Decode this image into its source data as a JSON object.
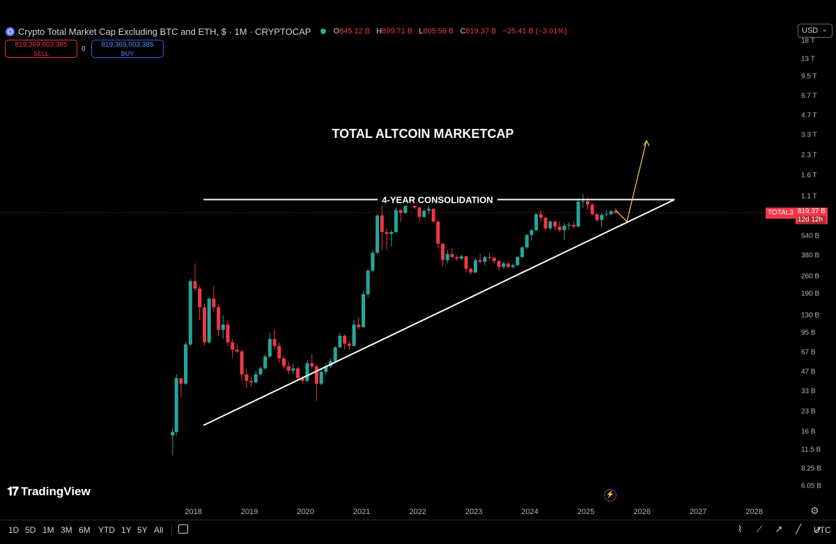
{
  "header": {
    "title": "Crypto Total Market Cap Excluding BTC and ETH, $ · 1M · CRYPTOCAP",
    "ohlc": {
      "o_key": "O",
      "o": "845.12 B",
      "h_key": "H",
      "h": "899.71 B",
      "l_key": "L",
      "l": "805.56 B",
      "c_key": "C",
      "c": "819.37 B",
      "change": "−25.41 B (−3.01%)"
    }
  },
  "trade": {
    "sell_price": "819,369,603,385",
    "sell_label": "SELL",
    "spread": "0",
    "buy_price": "819,369,603,385",
    "buy_label": "BUY"
  },
  "currency": "USD",
  "price_tag": {
    "symbol": "TOTAL3",
    "price": "819.37 B",
    "countdown": "12d 12h"
  },
  "branding": "TradingView",
  "toolbar": {
    "timeframes": [
      "1D",
      "5D",
      "1M",
      "3M",
      "6M",
      "YTD",
      "1Y",
      "5Y",
      "All"
    ],
    "timezone": "UTC"
  },
  "colors": {
    "up": "#26a69a",
    "down": "#f23645",
    "annotation": "#ffffff",
    "projection": "#f5c542",
    "background": "#000000"
  },
  "chart_data": {
    "type": "candlestick",
    "title": "TOTAL ALTCOIN MARKETCAP",
    "annotation": "4-YEAR CONSOLIDATION",
    "y_scale": "log",
    "y_unit": "USD",
    "y_ticks": [
      "18 T",
      "13 T",
      "9.5 T",
      "6.7 T",
      "4.7 T",
      "3.3 T",
      "2.3 T",
      "1.6 T",
      "1.1 T",
      "540 B",
      "380 B",
      "260 B",
      "190 B",
      "130 B",
      "95 B",
      "67 B",
      "47 B",
      "33 B",
      "23 B",
      "16 B",
      "11.5 B",
      "8.25 B",
      "6.05 B"
    ],
    "x_ticks": [
      "2018",
      "2019",
      "2020",
      "2021",
      "2022",
      "2023",
      "2024",
      "2025",
      "2026",
      "2027",
      "2028"
    ],
    "candles": [
      [
        2017.6,
        15.0,
        17.0,
        10.5,
        16.0
      ],
      [
        2017.667,
        16.0,
        45.0,
        15.0,
        42.0
      ],
      [
        2017.75,
        42.0,
        40.0,
        30.0,
        38.0
      ],
      [
        2017.833,
        38.0,
        80.0,
        37.0,
        77.0
      ],
      [
        2017.917,
        77.0,
        250.0,
        75.0,
        240.0
      ],
      [
        2018.0,
        240.0,
        330.0,
        200.0,
        210.0
      ],
      [
        2018.083,
        210.0,
        220.0,
        120.0,
        150.0
      ],
      [
        2018.167,
        150.0,
        160.0,
        75.0,
        80.0
      ],
      [
        2018.25,
        80.0,
        180.0,
        78.0,
        175.0
      ],
      [
        2018.333,
        175.0,
        220.0,
        140.0,
        150.0
      ],
      [
        2018.417,
        150.0,
        160.0,
        90.0,
        100.0
      ],
      [
        2018.5,
        100.0,
        130.0,
        85.0,
        110.0
      ],
      [
        2018.583,
        110.0,
        115.0,
        75.0,
        80.0
      ],
      [
        2018.667,
        80.0,
        85.0,
        60.0,
        70.0
      ],
      [
        2018.75,
        70.0,
        78.0,
        66.0,
        68.0
      ],
      [
        2018.833,
        68.0,
        70.0,
        40.0,
        45.0
      ],
      [
        2018.917,
        45.0,
        50.0,
        35.0,
        40.0
      ],
      [
        2019.0,
        40.0,
        43.0,
        36.0,
        39.0
      ],
      [
        2019.083,
        39.0,
        48.0,
        38.0,
        45.0
      ],
      [
        2019.167,
        45.0,
        52.0,
        44.0,
        50.0
      ],
      [
        2019.25,
        50.0,
        65.0,
        49.0,
        62.0
      ],
      [
        2019.333,
        62.0,
        95.0,
        60.0,
        85.0
      ],
      [
        2019.417,
        85.0,
        100.0,
        70.0,
        75.0
      ],
      [
        2019.5,
        75.0,
        80.0,
        55.0,
        60.0
      ],
      [
        2019.583,
        60.0,
        63.0,
        50.0,
        52.0
      ],
      [
        2019.667,
        52.0,
        56.0,
        45.0,
        48.0
      ],
      [
        2019.75,
        48.0,
        54.0,
        45.0,
        50.0
      ],
      [
        2019.833,
        50.0,
        52.0,
        40.0,
        42.0
      ],
      [
        2019.917,
        42.0,
        44.0,
        38.0,
        40.0
      ],
      [
        2020.0,
        40.0,
        58.0,
        39.0,
        55.0
      ],
      [
        2020.083,
        55.0,
        65.0,
        50.0,
        52.0
      ],
      [
        2020.167,
        52.0,
        54.0,
        28.0,
        38.0
      ],
      [
        2020.25,
        38.0,
        50.0,
        37.0,
        47.0
      ],
      [
        2020.333,
        47.0,
        55.0,
        45.0,
        52.0
      ],
      [
        2020.417,
        52.0,
        60.0,
        50.0,
        57.0
      ],
      [
        2020.5,
        57.0,
        75.0,
        55.0,
        73.0
      ],
      [
        2020.583,
        73.0,
        95.0,
        72.0,
        90.0
      ],
      [
        2020.667,
        90.0,
        92.0,
        70.0,
        78.0
      ],
      [
        2020.75,
        78.0,
        82.0,
        70.0,
        75.0
      ],
      [
        2020.833,
        75.0,
        120.0,
        74.0,
        110.0
      ],
      [
        2020.917,
        110.0,
        125.0,
        100.0,
        105.0
      ],
      [
        2021.0,
        105.0,
        200.0,
        104.0,
        190.0
      ],
      [
        2021.083,
        190.0,
        300.0,
        180.0,
        290.0
      ],
      [
        2021.167,
        290.0,
        420.0,
        280.0,
        400.0
      ],
      [
        2021.25,
        400.0,
        800.0,
        390.0,
        780.0
      ],
      [
        2021.333,
        780.0,
        950.0,
        420.0,
        580.0
      ],
      [
        2021.417,
        580.0,
        620.0,
        420.0,
        560.0
      ],
      [
        2021.5,
        560.0,
        600.0,
        450.0,
        580.0
      ],
      [
        2021.583,
        580.0,
        900.0,
        570.0,
        860.0
      ],
      [
        2021.667,
        860.0,
        880.0,
        700.0,
        820.0
      ],
      [
        2021.75,
        820.0,
        1050.0,
        800.0,
        1000.0
      ],
      [
        2021.833,
        1000.0,
        1150.0,
        950.0,
        1050.0
      ],
      [
        2021.917,
        1050.0,
        1080.0,
        870.0,
        900.0
      ],
      [
        2022.0,
        900.0,
        920.0,
        700.0,
        760.0
      ],
      [
        2022.083,
        760.0,
        880.0,
        750.0,
        850.0
      ],
      [
        2022.167,
        850.0,
        940.0,
        800.0,
        880.0
      ],
      [
        2022.25,
        880.0,
        900.0,
        680.0,
        700.0
      ],
      [
        2022.333,
        700.0,
        720.0,
        430.0,
        470.0
      ],
      [
        2022.417,
        470.0,
        480.0,
        310.0,
        350.0
      ],
      [
        2022.5,
        350.0,
        420.0,
        330.0,
        390.0
      ],
      [
        2022.583,
        390.0,
        430.0,
        360.0,
        370.0
      ],
      [
        2022.667,
        370.0,
        385.0,
        345.0,
        360.0
      ],
      [
        2022.75,
        360.0,
        390.0,
        350.0,
        375.0
      ],
      [
        2022.833,
        375.0,
        380.0,
        280.0,
        300.0
      ],
      [
        2022.917,
        300.0,
        305.0,
        270.0,
        280.0
      ],
      [
        2023.0,
        280.0,
        360.0,
        278.0,
        350.0
      ],
      [
        2023.083,
        350.0,
        390.0,
        330.0,
        340.0
      ],
      [
        2023.167,
        340.0,
        380.0,
        320.0,
        370.0
      ],
      [
        2023.25,
        370.0,
        400.0,
        350.0,
        365.0
      ],
      [
        2023.333,
        365.0,
        370.0,
        330.0,
        345.0
      ],
      [
        2023.417,
        345.0,
        350.0,
        290.0,
        310.0
      ],
      [
        2023.5,
        310.0,
        340.0,
        300.0,
        330.0
      ],
      [
        2023.583,
        330.0,
        335.0,
        300.0,
        310.0
      ],
      [
        2023.667,
        310.0,
        330.0,
        300.0,
        320.0
      ],
      [
        2023.75,
        320.0,
        380.0,
        315.0,
        370.0
      ],
      [
        2023.833,
        370.0,
        450.0,
        365.0,
        440.0
      ],
      [
        2023.917,
        440.0,
        560.0,
        430.0,
        550.0
      ],
      [
        2024.0,
        550.0,
        620.0,
        500.0,
        600.0
      ],
      [
        2024.083,
        600.0,
        820.0,
        590.0,
        800.0
      ],
      [
        2024.167,
        800.0,
        860.0,
        700.0,
        750.0
      ],
      [
        2024.25,
        750.0,
        760.0,
        590.0,
        620.0
      ],
      [
        2024.333,
        620.0,
        720.0,
        600.0,
        700.0
      ],
      [
        2024.417,
        700.0,
        710.0,
        600.0,
        640.0
      ],
      [
        2024.5,
        640.0,
        700.0,
        580.0,
        600.0
      ],
      [
        2024.583,
        600.0,
        680.0,
        500.0,
        650.0
      ],
      [
        2024.667,
        650.0,
        690.0,
        600.0,
        660.0
      ],
      [
        2024.75,
        660.0,
        700.0,
        620.0,
        640.0
      ],
      [
        2024.833,
        640.0,
        1060.0,
        630.0,
        1000.0
      ],
      [
        2024.917,
        1000.0,
        1150.0,
        900.0,
        1010.0
      ],
      [
        2025.0,
        1010.0,
        1080.0,
        870.0,
        950.0
      ],
      [
        2025.083,
        950.0,
        980.0,
        780.0,
        800.0
      ],
      [
        2025.167,
        800.0,
        820.0,
        700.0,
        720.0
      ],
      [
        2025.25,
        720.0,
        820.0,
        640.0,
        790.0
      ],
      [
        2025.333,
        790.0,
        860.0,
        760.0,
        800.0
      ],
      [
        2025.417,
        800.0,
        860.0,
        780.0,
        845.0
      ],
      [
        2025.5,
        845.0,
        899.71,
        805.56,
        819.37
      ]
    ],
    "trendlines": [
      {
        "label": "resistance",
        "x": [
          2018.15,
          2026.55
        ],
        "y": [
          1040.0,
          1040.0
        ]
      },
      {
        "label": "support",
        "x": [
          2018.15,
          2026.55
        ],
        "y": [
          18.0,
          1040.0
        ]
      }
    ],
    "projection": {
      "x": [
        2025.5,
        2025.7,
        2026.05
      ],
      "y": [
        860.0,
        700.0,
        3000.0
      ]
    }
  }
}
